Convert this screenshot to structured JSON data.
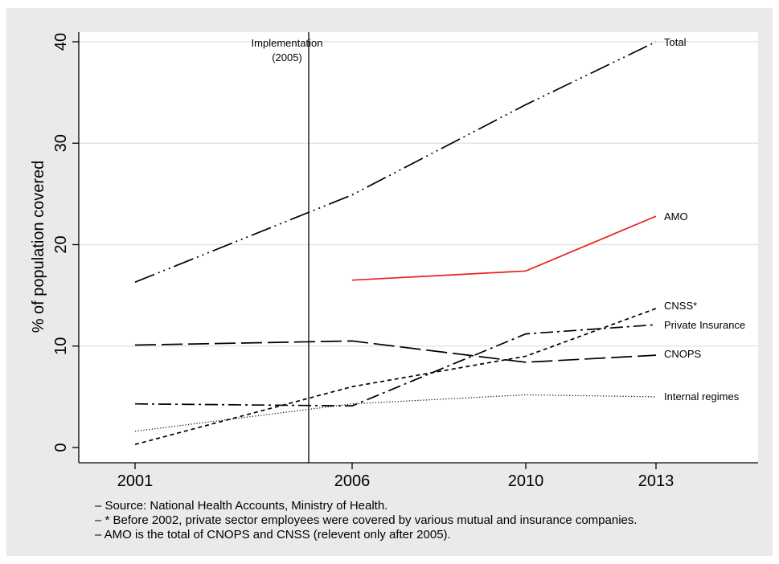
{
  "chart_data": {
    "type": "line",
    "title": "",
    "xlabel": "",
    "ylabel": "% of population covered",
    "x": [
      2001,
      2006,
      2010,
      2013
    ],
    "xticks": [
      "2001",
      "2006",
      "2010",
      "2013"
    ],
    "yticks": [
      "0",
      "10",
      "20",
      "30",
      "40"
    ],
    "ylim": [
      0,
      40
    ],
    "grid": true,
    "series": [
      {
        "name": "Total",
        "values": [
          16.3,
          24.9,
          33.8,
          40.0
        ],
        "color": "#000000",
        "dash": "longdash_dot"
      },
      {
        "name": "AMO",
        "values": [
          null,
          16.5,
          17.4,
          22.8
        ],
        "color": "#e8201c",
        "dash": "solid"
      },
      {
        "name": "CNSS*",
        "values": [
          0.3,
          6.0,
          9.0,
          13.7
        ],
        "color": "#000000",
        "dash": "shortdash"
      },
      {
        "name": "Private Insurance",
        "values": [
          4.3,
          4.1,
          11.2,
          12.1
        ],
        "color": "#000000",
        "dash": "dash_dot"
      },
      {
        "name": "CNOPS",
        "values": [
          10.1,
          10.5,
          8.4,
          9.1
        ],
        "color": "#000000",
        "dash": "longdash"
      },
      {
        "name": "Internal regimes",
        "values": [
          1.6,
          4.3,
          5.2,
          5.0
        ],
        "color": "#000000",
        "dash": "dot"
      }
    ],
    "annotation": {
      "label_line1": "Implementation",
      "label_line2": "(2005)",
      "x": 2005
    }
  },
  "notes": [
    "– Source: National Health Accounts, Ministry of Health.",
    "– * Before 2002, private sector employees were covered by various mutual and insurance companies.",
    "– AMO is the total of CNOPS and CNSS (relevent only after 2005)."
  ]
}
